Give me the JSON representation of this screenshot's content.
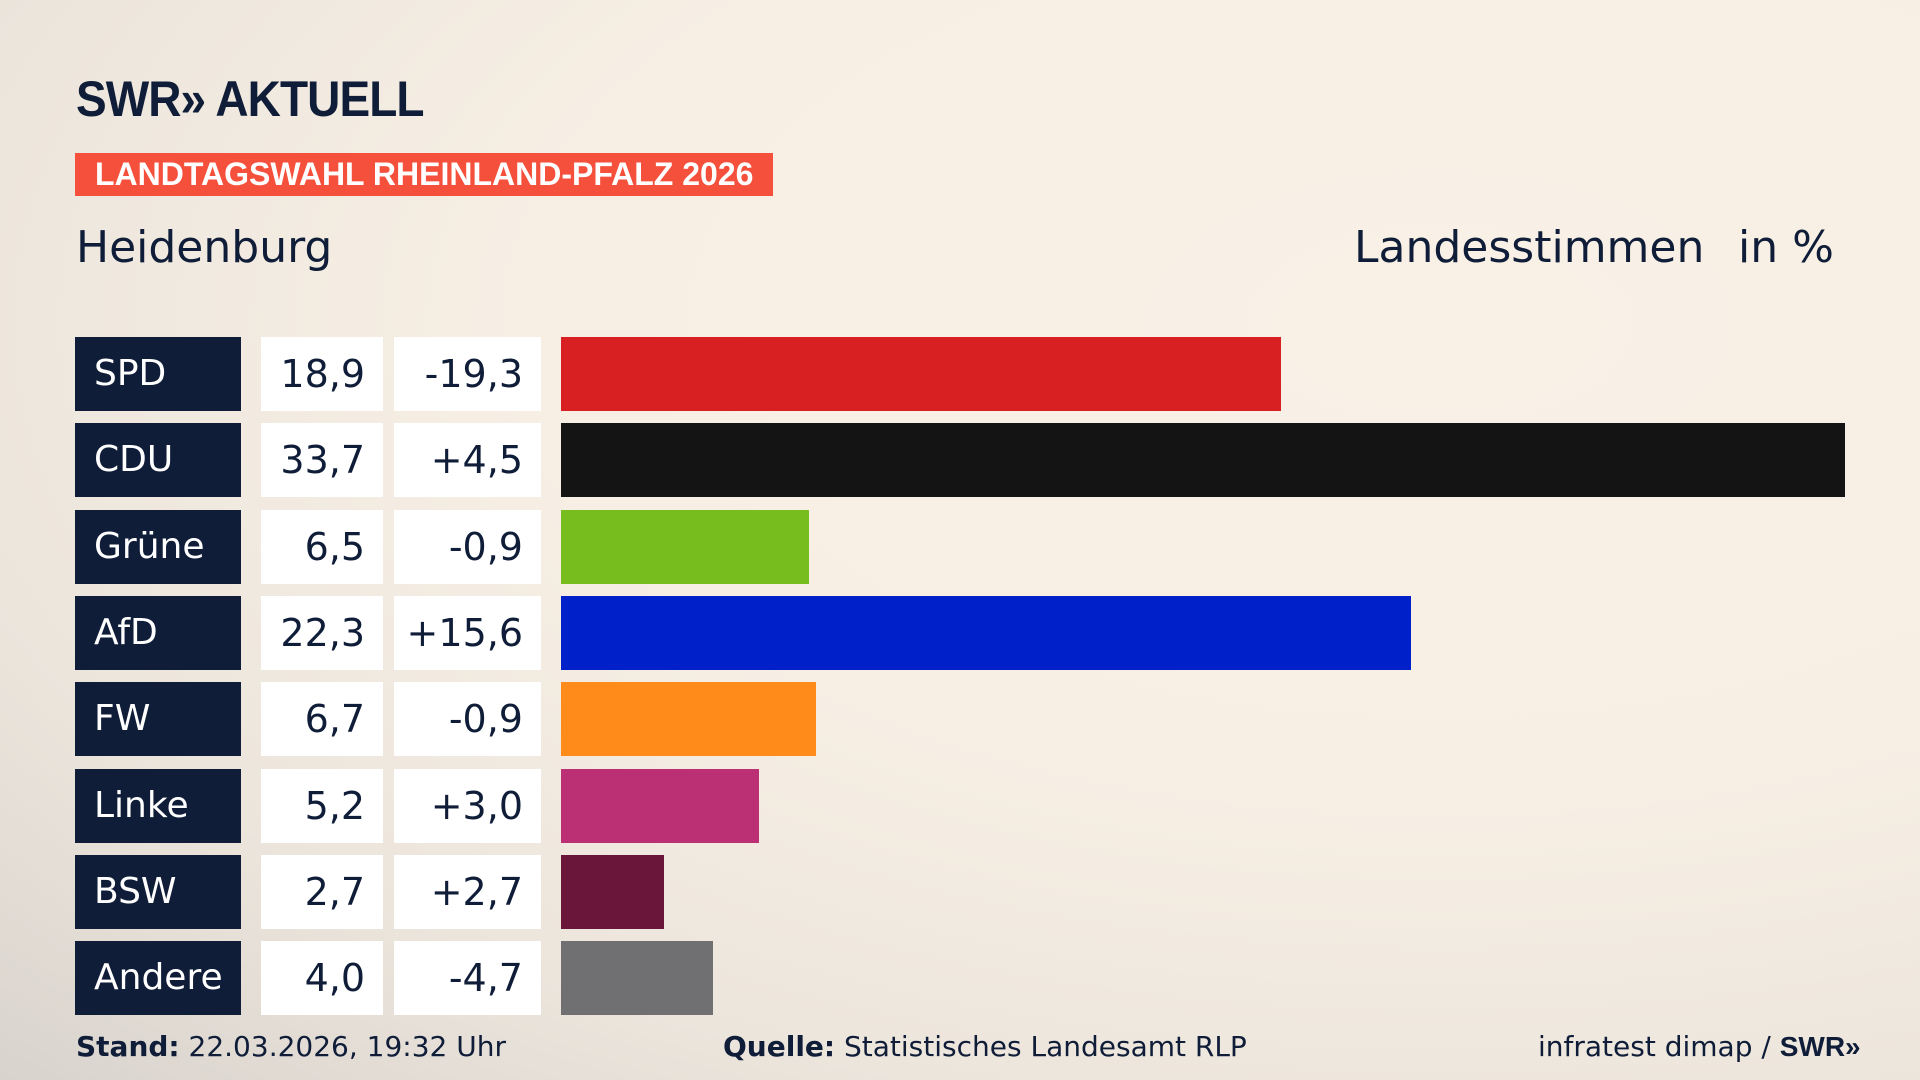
{
  "header": {
    "logo": "SWR» AKTUELL",
    "banner": "LANDTAGSWAHL RHEINLAND-PFALZ 2026",
    "region": "Heidenburg",
    "metric": "Landesstimmen",
    "unit": "in %"
  },
  "chart_data": {
    "type": "bar",
    "orientation": "horizontal",
    "categories": [
      "SPD",
      "CDU",
      "Grüne",
      "AfD",
      "FW",
      "Linke",
      "BSW",
      "Andere"
    ],
    "values_label": [
      "18,9",
      "33,7",
      "6,5",
      "22,3",
      "6,7",
      "5,2",
      "2,7",
      "4,0"
    ],
    "diff_label": [
      "-19,3",
      "+4,5",
      "-0,9",
      "+15,6",
      "-0,9",
      "+3,0",
      "+2,7",
      "-4,7"
    ],
    "values": [
      18.9,
      33.7,
      6.5,
      22.3,
      6.7,
      5.2,
      2.7,
      4.0
    ],
    "diffs": [
      -19.3,
      4.5,
      -0.9,
      15.6,
      -0.9,
      3.0,
      2.7,
      -4.7
    ],
    "colors": [
      "#d81f21",
      "#141414",
      "#78bd1e",
      "#0021c9",
      "#ff8c1a",
      "#bb2f74",
      "#6a163b",
      "#707072"
    ],
    "grid": false
  },
  "footer": {
    "stand_label": "Stand:",
    "stand": "22.03.2026, 19:32 Uhr",
    "source_label": "Quelle:",
    "source": "Statistisches Landesamt RLP",
    "credit": "infratest dimap / ",
    "credit_logo": "SWR»"
  }
}
